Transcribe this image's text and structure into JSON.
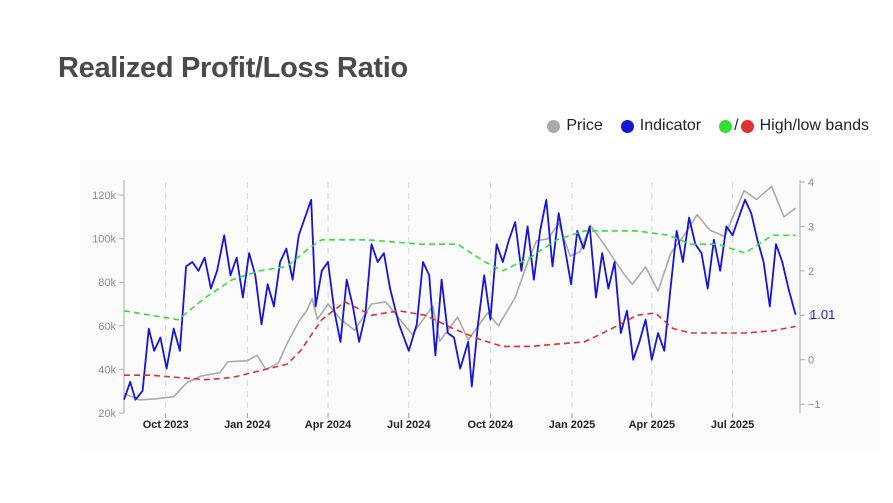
{
  "title": "Realized Profit/Loss Ratio",
  "legend": {
    "price": {
      "label": "Price",
      "color": "#aaaaaa"
    },
    "indicator": {
      "label": "Indicator",
      "color": "#1515d6"
    },
    "bands": {
      "label": "High/low bands",
      "slash": "/",
      "high_color": "#33e033",
      "low_color": "#e03030"
    }
  },
  "chart_data": {
    "type": "line",
    "x_ticks": [
      "Oct 2023",
      "Jan 2024",
      "Apr 2024",
      "Jul 2024",
      "Oct 2024",
      "Jan 2025",
      "Apr 2025",
      "Jul 2025"
    ],
    "x_range": [
      "2023-08-15",
      "2025-09-15"
    ],
    "y_left": {
      "ticks": [
        "20k",
        "40k",
        "60k",
        "80k",
        "100k",
        "120k"
      ],
      "range": [
        20000,
        126000
      ]
    },
    "y_right": {
      "ticks": [
        "−1",
        "0",
        "1",
        "2",
        "3",
        "4"
      ],
      "range": [
        -1.2,
        4
      ]
    },
    "last_value_label": "1.01",
    "series": [
      {
        "name": "Price",
        "axis": "left",
        "color": "#aaaaaa",
        "dash": false,
        "points": [
          [
            "2023-08-15",
            29000
          ],
          [
            "2023-09-01",
            26000
          ],
          [
            "2023-09-20",
            26500
          ],
          [
            "2023-10-10",
            27500
          ],
          [
            "2023-10-25",
            34000
          ],
          [
            "2023-11-10",
            37000
          ],
          [
            "2023-12-01",
            38500
          ],
          [
            "2023-12-10",
            43500
          ],
          [
            "2024-01-01",
            44000
          ],
          [
            "2024-01-12",
            46500
          ],
          [
            "2024-01-22",
            40000
          ],
          [
            "2024-02-05",
            43000
          ],
          [
            "2024-02-15",
            52000
          ],
          [
            "2024-02-28",
            62000
          ],
          [
            "2024-03-08",
            67000
          ],
          [
            "2024-03-14",
            72500
          ],
          [
            "2024-03-20",
            63000
          ],
          [
            "2024-04-01",
            70000
          ],
          [
            "2024-04-15",
            63000
          ],
          [
            "2024-05-01",
            58000
          ],
          [
            "2024-05-20",
            70000
          ],
          [
            "2024-06-05",
            71000
          ],
          [
            "2024-06-25",
            61000
          ],
          [
            "2024-07-05",
            56000
          ],
          [
            "2024-07-28",
            69000
          ],
          [
            "2024-08-05",
            53000
          ],
          [
            "2024-08-25",
            64000
          ],
          [
            "2024-09-06",
            53500
          ],
          [
            "2024-09-28",
            66000
          ],
          [
            "2024-10-10",
            60000
          ],
          [
            "2024-10-29",
            73000
          ],
          [
            "2024-11-12",
            89000
          ],
          [
            "2024-11-22",
            99000
          ],
          [
            "2024-12-05",
            100000
          ],
          [
            "2024-12-17",
            107000
          ],
          [
            "2024-12-30",
            92000
          ],
          [
            "2025-01-10",
            94000
          ],
          [
            "2025-01-22",
            106000
          ],
          [
            "2025-02-05",
            98000
          ],
          [
            "2025-02-28",
            84000
          ],
          [
            "2025-03-10",
            79000
          ],
          [
            "2025-03-25",
            87000
          ],
          [
            "2025-04-08",
            76000
          ],
          [
            "2025-04-22",
            93000
          ],
          [
            "2025-05-10",
            103000
          ],
          [
            "2025-05-22",
            111000
          ],
          [
            "2025-06-05",
            104000
          ],
          [
            "2025-06-22",
            101000
          ],
          [
            "2025-07-14",
            122000
          ],
          [
            "2025-07-28",
            118000
          ],
          [
            "2025-08-14",
            124000
          ],
          [
            "2025-08-28",
            110000
          ],
          [
            "2025-09-10",
            114000
          ]
        ]
      },
      {
        "name": "Indicator",
        "axis": "right",
        "color": "#1515d6",
        "dash": false,
        "points": [
          [
            "2023-08-15",
            -0.9
          ],
          [
            "2023-08-22",
            -0.5
          ],
          [
            "2023-08-28",
            -0.9
          ],
          [
            "2023-09-05",
            -0.7
          ],
          [
            "2023-09-12",
            0.7
          ],
          [
            "2023-09-18",
            0.2
          ],
          [
            "2023-09-25",
            0.5
          ],
          [
            "2023-10-02",
            -0.2
          ],
          [
            "2023-10-10",
            0.7
          ],
          [
            "2023-10-17",
            0.2
          ],
          [
            "2023-10-24",
            2.1
          ],
          [
            "2023-10-31",
            2.2
          ],
          [
            "2023-11-07",
            2.0
          ],
          [
            "2023-11-14",
            2.3
          ],
          [
            "2023-11-21",
            1.6
          ],
          [
            "2023-11-28",
            2.0
          ],
          [
            "2023-12-06",
            2.8
          ],
          [
            "2023-12-13",
            1.9
          ],
          [
            "2023-12-20",
            2.3
          ],
          [
            "2023-12-27",
            1.4
          ],
          [
            "2024-01-03",
            2.4
          ],
          [
            "2024-01-10",
            1.9
          ],
          [
            "2024-01-17",
            0.8
          ],
          [
            "2024-01-24",
            1.7
          ],
          [
            "2024-01-31",
            1.2
          ],
          [
            "2024-02-07",
            2.2
          ],
          [
            "2024-02-14",
            2.5
          ],
          [
            "2024-02-21",
            1.8
          ],
          [
            "2024-02-28",
            2.8
          ],
          [
            "2024-03-06",
            3.2
          ],
          [
            "2024-03-13",
            3.6
          ],
          [
            "2024-03-18",
            1.2
          ],
          [
            "2024-03-25",
            2.0
          ],
          [
            "2024-04-01",
            2.2
          ],
          [
            "2024-04-08",
            1.1
          ],
          [
            "2024-04-15",
            0.4
          ],
          [
            "2024-04-22",
            1.8
          ],
          [
            "2024-04-29",
            1.2
          ],
          [
            "2024-05-06",
            0.4
          ],
          [
            "2024-05-13",
            1.0
          ],
          [
            "2024-05-20",
            2.6
          ],
          [
            "2024-05-27",
            2.2
          ],
          [
            "2024-06-03",
            2.4
          ],
          [
            "2024-06-10",
            1.6
          ],
          [
            "2024-06-20",
            0.8
          ],
          [
            "2024-07-01",
            0.2
          ],
          [
            "2024-07-10",
            0.8
          ],
          [
            "2024-07-17",
            2.2
          ],
          [
            "2024-07-24",
            1.9
          ],
          [
            "2024-07-31",
            0.1
          ],
          [
            "2024-08-07",
            1.8
          ],
          [
            "2024-08-14",
            0.6
          ],
          [
            "2024-08-21",
            0.5
          ],
          [
            "2024-08-28",
            -0.2
          ],
          [
            "2024-09-06",
            0.4
          ],
          [
            "2024-09-10",
            -0.6
          ],
          [
            "2024-09-17",
            0.8
          ],
          [
            "2024-09-24",
            1.9
          ],
          [
            "2024-10-01",
            0.9
          ],
          [
            "2024-10-08",
            2.6
          ],
          [
            "2024-10-15",
            2.2
          ],
          [
            "2024-10-22",
            2.7
          ],
          [
            "2024-10-29",
            3.1
          ],
          [
            "2024-11-05",
            2.0
          ],
          [
            "2024-11-12",
            3.0
          ],
          [
            "2024-11-19",
            1.8
          ],
          [
            "2024-11-26",
            2.9
          ],
          [
            "2024-12-03",
            3.6
          ],
          [
            "2024-12-10",
            2.1
          ],
          [
            "2024-12-17",
            3.3
          ],
          [
            "2024-12-24",
            2.5
          ],
          [
            "2024-12-31",
            1.7
          ],
          [
            "2025-01-07",
            2.9
          ],
          [
            "2025-01-14",
            2.5
          ],
          [
            "2025-01-21",
            3.0
          ],
          [
            "2025-01-28",
            1.4
          ],
          [
            "2025-02-04",
            2.4
          ],
          [
            "2025-02-11",
            1.6
          ],
          [
            "2025-02-18",
            2.2
          ],
          [
            "2025-02-25",
            0.6
          ],
          [
            "2025-03-04",
            1.1
          ],
          [
            "2025-03-11",
            0.0
          ],
          [
            "2025-03-18",
            0.4
          ],
          [
            "2025-03-25",
            0.9
          ],
          [
            "2025-04-01",
            0.0
          ],
          [
            "2025-04-08",
            0.6
          ],
          [
            "2025-04-15",
            0.2
          ],
          [
            "2025-04-22",
            1.6
          ],
          [
            "2025-04-29",
            2.9
          ],
          [
            "2025-05-06",
            2.2
          ],
          [
            "2025-05-13",
            3.2
          ],
          [
            "2025-05-20",
            2.6
          ],
          [
            "2025-05-27",
            2.4
          ],
          [
            "2025-06-03",
            1.6
          ],
          [
            "2025-06-10",
            2.7
          ],
          [
            "2025-06-17",
            2.0
          ],
          [
            "2025-06-24",
            3.0
          ],
          [
            "2025-07-01",
            2.8
          ],
          [
            "2025-07-08",
            3.2
          ],
          [
            "2025-07-15",
            3.6
          ],
          [
            "2025-07-22",
            3.3
          ],
          [
            "2025-07-29",
            2.7
          ],
          [
            "2025-08-05",
            2.2
          ],
          [
            "2025-08-12",
            1.2
          ],
          [
            "2025-08-19",
            2.6
          ],
          [
            "2025-08-26",
            2.2
          ],
          [
            "2025-09-02",
            1.6
          ],
          [
            "2025-09-10",
            1.01
          ]
        ]
      },
      {
        "name": "High band",
        "axis": "right",
        "color": "#33e033",
        "dash": true,
        "points": [
          [
            "2023-08-15",
            1.1
          ],
          [
            "2023-09-15",
            1.0
          ],
          [
            "2023-10-15",
            0.9
          ],
          [
            "2023-11-15",
            1.4
          ],
          [
            "2023-12-15",
            1.8
          ],
          [
            "2024-01-15",
            2.0
          ],
          [
            "2024-02-15",
            2.1
          ],
          [
            "2024-03-10",
            2.5
          ],
          [
            "2024-03-25",
            2.7
          ],
          [
            "2024-05-15",
            2.7
          ],
          [
            "2024-07-15",
            2.6
          ],
          [
            "2024-08-25",
            2.6
          ],
          [
            "2024-09-25",
            2.2
          ],
          [
            "2024-10-15",
            2.0
          ],
          [
            "2024-11-15",
            2.3
          ],
          [
            "2024-12-15",
            2.7
          ],
          [
            "2025-01-15",
            2.9
          ],
          [
            "2025-02-15",
            2.9
          ],
          [
            "2025-03-15",
            2.9
          ],
          [
            "2025-04-20",
            2.8
          ],
          [
            "2025-05-15",
            2.6
          ],
          [
            "2025-06-15",
            2.6
          ],
          [
            "2025-07-15",
            2.4
          ],
          [
            "2025-08-15",
            2.8
          ],
          [
            "2025-09-10",
            2.8
          ]
        ]
      },
      {
        "name": "Low band",
        "axis": "right",
        "color": "#e03030",
        "dash": true,
        "points": [
          [
            "2023-08-15",
            -0.35
          ],
          [
            "2023-09-15",
            -0.35
          ],
          [
            "2023-10-15",
            -0.4
          ],
          [
            "2023-11-15",
            -0.45
          ],
          [
            "2023-12-15",
            -0.4
          ],
          [
            "2024-01-15",
            -0.25
          ],
          [
            "2024-02-15",
            -0.1
          ],
          [
            "2024-03-01",
            0.2
          ],
          [
            "2024-03-25",
            0.9
          ],
          [
            "2024-04-20",
            1.3
          ],
          [
            "2024-05-20",
            1.0
          ],
          [
            "2024-06-20",
            1.1
          ],
          [
            "2024-07-20",
            1.0
          ],
          [
            "2024-08-20",
            0.7
          ],
          [
            "2024-09-20",
            0.45
          ],
          [
            "2024-10-15",
            0.3
          ],
          [
            "2024-11-15",
            0.3
          ],
          [
            "2024-12-15",
            0.35
          ],
          [
            "2025-01-15",
            0.4
          ],
          [
            "2025-02-15",
            0.7
          ],
          [
            "2025-03-15",
            1.0
          ],
          [
            "2025-04-05",
            1.05
          ],
          [
            "2025-04-25",
            0.7
          ],
          [
            "2025-05-15",
            0.6
          ],
          [
            "2025-07-15",
            0.6
          ],
          [
            "2025-08-15",
            0.65
          ],
          [
            "2025-09-10",
            0.75
          ]
        ]
      }
    ]
  }
}
